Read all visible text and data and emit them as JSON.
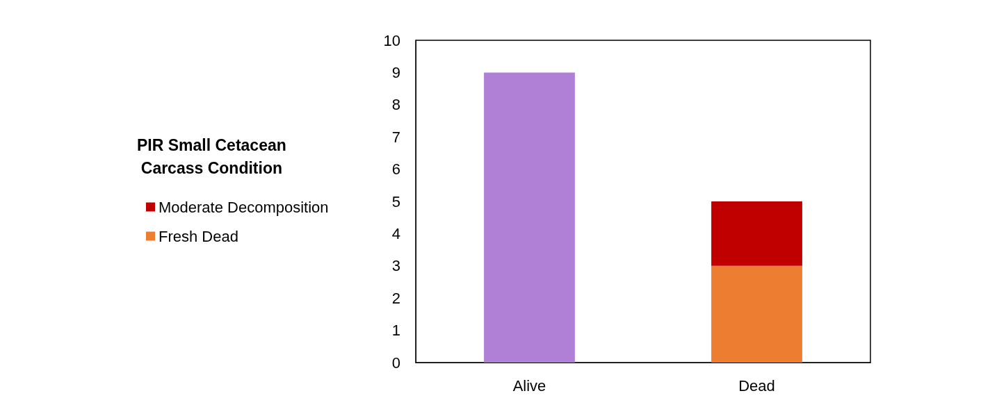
{
  "chart_data": {
    "type": "bar",
    "stacked": true,
    "legend_title": "PIR Small Cetacean\nCarcass Condition",
    "categories": [
      "Alive",
      "Dead"
    ],
    "series": [
      {
        "color": "#b07fd6",
        "values": [
          9,
          null
        ]
      },
      {
        "name": "Fresh Dead",
        "color": "#ed7d31",
        "values": [
          null,
          3
        ]
      },
      {
        "name": "Moderate Decomposition",
        "color": "#c00000",
        "values": [
          null,
          2
        ]
      }
    ],
    "ylim": [
      0,
      10
    ],
    "yticks": [
      0,
      1,
      2,
      3,
      4,
      5,
      6,
      7,
      8,
      9,
      10
    ],
    "grid": false,
    "legend": "left"
  }
}
